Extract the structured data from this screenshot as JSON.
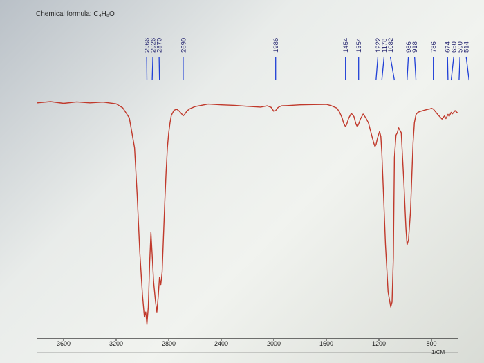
{
  "header": {
    "formula_label": "Chemical formula: C₄H₈O"
  },
  "chart_data": {
    "type": "line",
    "title": "",
    "xlabel": "1/CM",
    "ylabel": "",
    "x_direction": "decreasing",
    "xlim": [
      3800,
      600
    ],
    "ylim": [
      0,
      100
    ],
    "grid": false,
    "colors": {
      "line": "#c0392b",
      "peak_marker": "#1f3fd6",
      "axis": "#222222"
    },
    "x_ticks": [
      "3600",
      "3200",
      "2800",
      "2400",
      "2000",
      "1600",
      "1200",
      "800"
    ],
    "x_tick_values": [
      3600,
      3200,
      2800,
      2400,
      2000,
      1600,
      1200,
      800
    ],
    "peak_labels": [
      "2966",
      "2926",
      "2870",
      "2690",
      "1986",
      "1454",
      "1354",
      "1222",
      "1178",
      "1082",
      "986",
      "918",
      "786",
      "674",
      "650",
      "590",
      "514"
    ],
    "series": [
      {
        "x": [
          3800,
          3700,
          3600,
          3500,
          3400,
          3300,
          3200,
          3150,
          3100,
          3060,
          3040,
          3020,
          3000,
          2985,
          2975,
          2966,
          2955,
          2945,
          2935,
          2926,
          2915,
          2900,
          2890,
          2880,
          2870,
          2860,
          2850,
          2840,
          2830,
          2820,
          2810,
          2800,
          2790,
          2780,
          2760,
          2740,
          2720,
          2700,
          2690,
          2680,
          2660,
          2640,
          2600,
          2500,
          2400,
          2300,
          2200,
          2100,
          2050,
          2020,
          2000,
          1986,
          1975,
          1960,
          1940,
          1900,
          1800,
          1700,
          1600,
          1560,
          1520,
          1500,
          1480,
          1470,
          1460,
          1454,
          1445,
          1430,
          1410,
          1390,
          1375,
          1365,
          1354,
          1340,
          1320,
          1300,
          1280,
          1260,
          1240,
          1230,
          1222,
          1210,
          1195,
          1185,
          1178,
          1165,
          1150,
          1130,
          1110,
          1100,
          1090,
          1082,
          1070,
          1060,
          1050,
          1030,
          1010,
          995,
          986,
          975,
          960,
          950,
          940,
          930,
          918,
          905,
          890,
          870,
          850,
          830,
          810,
          800,
          786,
          770,
          750,
          720,
          700,
          690,
          674,
          665,
          650,
          640,
          620,
          600
        ],
        "y": [
          92,
          92.5,
          91.8,
          92.4,
          92,
          92.3,
          91.6,
          90,
          86,
          74,
          55,
          32,
          15,
          6,
          8,
          3,
          10,
          28,
          40,
          31,
          20,
          12,
          8,
          14,
          22,
          19,
          24,
          38,
          52,
          64,
          74,
          80,
          84,
          87,
          89,
          89.5,
          88.7,
          87.5,
          86.8,
          87.3,
          88.8,
          89.6,
          90.5,
          91.5,
          91.2,
          91,
          90.6,
          90.3,
          90.8,
          90.2,
          88.6,
          88.9,
          89.8,
          90.4,
          90.8,
          90.9,
          91.2,
          91.3,
          91.4,
          90.8,
          89.9,
          88.3,
          86,
          84.1,
          83,
          82.5,
          83.4,
          85.9,
          87.8,
          86.5,
          83.5,
          82.5,
          83.5,
          85.6,
          87.5,
          86,
          84,
          80,
          76,
          74.5,
          75.2,
          78,
          80.5,
          78.5,
          72,
          55,
          35,
          16,
          10,
          12,
          30,
          70,
          79,
          80,
          82,
          80,
          60,
          42,
          35,
          37,
          48,
          62,
          76,
          84,
          87.3,
          88.1,
          88.5,
          88.8,
          89.1,
          89.4,
          89.6,
          89.8,
          89.5,
          88.5,
          87.2,
          85.5,
          86.8,
          85.7,
          87.4,
          86.6,
          88.2,
          87.6,
          88.9,
          87.9
        ]
      }
    ]
  }
}
